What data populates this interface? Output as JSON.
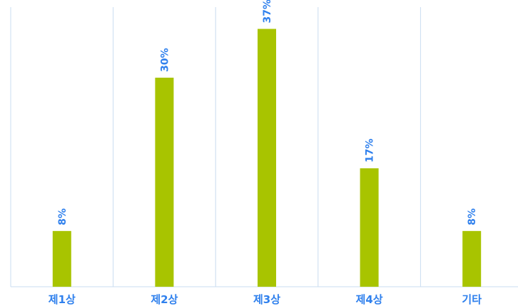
{
  "chart_data": {
    "type": "bar",
    "categories": [
      "제1상",
      "제2상",
      "제3상",
      "제4상",
      "기타"
    ],
    "values": [
      8,
      30,
      37,
      17,
      8
    ],
    "data_labels": [
      "8%",
      "30%",
      "37%",
      "17%",
      "8%"
    ],
    "unit": "%",
    "ylim": [
      0,
      40
    ],
    "grid": "vertical separators",
    "legend": "none",
    "colors": {
      "bar": "#a8c400",
      "label": "#2f80ed",
      "grid": "#c9dcf0"
    }
  }
}
